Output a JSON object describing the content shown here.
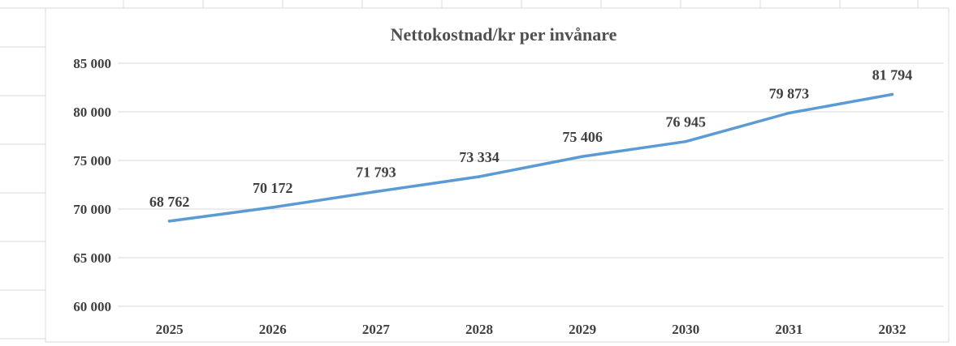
{
  "chart_data": {
    "type": "line",
    "title": "Nettokostnad/kr per invånare",
    "xlabel": "",
    "ylabel": "",
    "categories": [
      "2025",
      "2026",
      "2027",
      "2028",
      "2029",
      "2030",
      "2031",
      "2032"
    ],
    "series": [
      {
        "values": [
          68762,
          70172,
          71793,
          73334,
          75406,
          76945,
          79873,
          81794
        ],
        "data_labels": [
          "68 762",
          "70 172",
          "71 793",
          "73 334",
          "75 406",
          "76 945",
          "79 873",
          "81 794"
        ],
        "color": "#5b9bd5"
      }
    ],
    "ylim": [
      60000,
      85000
    ],
    "yticks": [
      60000,
      65000,
      70000,
      75000,
      80000,
      85000
    ],
    "ytick_labels": [
      "60 000",
      "65 000",
      "70 000",
      "75 000",
      "80 000",
      "85 000"
    ],
    "grid": true,
    "legend": "none",
    "colors": {
      "line": "#5b9bd5",
      "grid": "#d9d9d9",
      "text": "#404040",
      "title": "#505050"
    }
  }
}
